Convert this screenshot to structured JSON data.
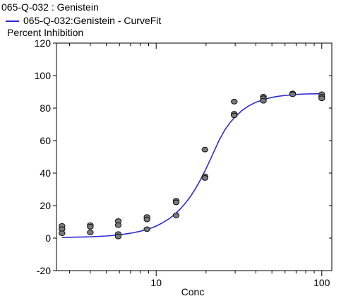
{
  "chart_data": {
    "type": "scatter",
    "title": "065-Q-032  : Genistein",
    "ylabel": "Percent Inhibition",
    "xlabel": "Conc",
    "x_scale": "log",
    "xlim": [
      2.5,
      115
    ],
    "ylim": [
      -20,
      120
    ],
    "y_ticks": [
      -20,
      0,
      20,
      40,
      60,
      80,
      100,
      120
    ],
    "x_tick_labels": [
      {
        "value": 10,
        "label": "10"
      },
      {
        "value": 100,
        "label": "100"
      }
    ],
    "grid": false,
    "legend_position": "top-left",
    "series": [
      {
        "kind": "points",
        "color": "#7a7a7a",
        "points": [
          {
            "x": 2.7,
            "y": 7.5
          },
          {
            "x": 2.7,
            "y": 5.5
          },
          {
            "x": 2.7,
            "y": 3.0
          },
          {
            "x": 4.0,
            "y": 8.0
          },
          {
            "x": 4.0,
            "y": 7.0
          },
          {
            "x": 4.0,
            "y": 3.5
          },
          {
            "x": 5.9,
            "y": 10.5
          },
          {
            "x": 5.9,
            "y": 8.0
          },
          {
            "x": 5.9,
            "y": 2.5
          },
          {
            "x": 5.9,
            "y": 1.0
          },
          {
            "x": 8.8,
            "y": 13.0
          },
          {
            "x": 8.8,
            "y": 11.5
          },
          {
            "x": 8.8,
            "y": 5.5
          },
          {
            "x": 13.2,
            "y": 23.0
          },
          {
            "x": 13.2,
            "y": 22.0
          },
          {
            "x": 13.2,
            "y": 14.0
          },
          {
            "x": 19.7,
            "y": 54.5
          },
          {
            "x": 19.7,
            "y": 38.0
          },
          {
            "x": 19.7,
            "y": 37.0
          },
          {
            "x": 29.6,
            "y": 84.0
          },
          {
            "x": 29.6,
            "y": 76.5
          },
          {
            "x": 29.6,
            "y": 75.5
          },
          {
            "x": 44.4,
            "y": 87.0
          },
          {
            "x": 44.4,
            "y": 86.0
          },
          {
            "x": 44.4,
            "y": 84.5
          },
          {
            "x": 66.7,
            "y": 89.0
          },
          {
            "x": 66.7,
            "y": 88.5
          },
          {
            "x": 100,
            "y": 88.5
          },
          {
            "x": 100,
            "y": 87.0
          },
          {
            "x": 100,
            "y": 86.0
          }
        ]
      },
      {
        "kind": "curve",
        "name": "065-Q-032:Genistein - CurveFit",
        "color": "#2b2bd6",
        "x": [
          2.7,
          4.0,
          5.0,
          6.0,
          7.0,
          8.0,
          9.0,
          10.0,
          11.0,
          12.0,
          13.0,
          14.0,
          15.0,
          16.0,
          17.0,
          18.0,
          19.0,
          20.0,
          21.0,
          22.0,
          24.0,
          26.0,
          28.0,
          30.0,
          33.0,
          36.0,
          40.0,
          45.0,
          50.0,
          55.0,
          60.0,
          70.0,
          80.0,
          90.0,
          100.0
        ],
        "y": [
          0.4,
          0.8,
          1.3,
          2.0,
          3.0,
          4.2,
          5.6,
          7.4,
          9.6,
          12.0,
          14.8,
          18.0,
          21.5,
          25.2,
          29.3,
          33.6,
          38.1,
          42.7,
          47.3,
          51.8,
          60.2,
          66.6,
          71.2,
          74.6,
          78.5,
          81.2,
          83.6,
          85.4,
          86.6,
          87.3,
          87.8,
          88.4,
          88.7,
          88.8,
          88.9
        ]
      }
    ]
  }
}
